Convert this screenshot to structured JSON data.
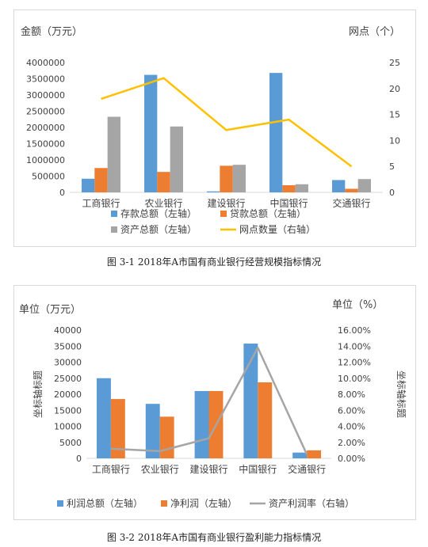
{
  "captions": {
    "fig1": "图 3-1 2018年A市国有商业银行经营规模指标情况",
    "fig2": "图 3-2 2018年A市国有商业银行盈利能力指标情况"
  },
  "chart_data": [
    {
      "type": "bar",
      "categories": [
        "工商银行",
        "农业银行",
        "建设银行",
        "中国银行",
        "交通银行"
      ],
      "series": [
        {
          "name": "存款总额（左轴）",
          "kind": "bar",
          "axis": "left",
          "color": "#5b9bd5",
          "values": [
            420000,
            3620000,
            30000,
            3680000,
            380000
          ]
        },
        {
          "name": "贷款总额（左轴）",
          "kind": "bar",
          "axis": "left",
          "color": "#ed7d31",
          "values": [
            750000,
            630000,
            820000,
            220000,
            110000
          ]
        },
        {
          "name": "资产总额（左轴）",
          "kind": "bar",
          "axis": "left",
          "color": "#a5a5a5",
          "values": [
            2330000,
            2030000,
            850000,
            250000,
            410000
          ]
        },
        {
          "name": "网点数量（右轴）",
          "kind": "line",
          "axis": "right",
          "color": "#ffc000",
          "values": [
            18,
            22,
            12,
            14,
            5
          ]
        }
      ],
      "ylabel": "金额（万元）",
      "y2label": "网点（个）",
      "ylim": [
        0,
        4000000
      ],
      "yticks": [
        "0",
        "500000",
        "1000000",
        "1500000",
        "2000000",
        "2500000",
        "3000000",
        "3500000",
        "4000000"
      ],
      "y2lim": [
        0,
        25
      ],
      "y2ticks": [
        "0",
        "5",
        "10",
        "15",
        "20",
        "25"
      ],
      "legend_position": "bottom",
      "grid": false
    },
    {
      "type": "bar",
      "categories": [
        "工商银行",
        "农业银行",
        "建设银行",
        "中国银行",
        "交通银行"
      ],
      "series": [
        {
          "name": "利润总额（左轴）",
          "kind": "bar",
          "axis": "left",
          "color": "#5b9bd5",
          "values": [
            25000,
            17000,
            21000,
            35800,
            1800
          ]
        },
        {
          "name": "净利润（左轴）",
          "kind": "bar",
          "axis": "left",
          "color": "#ed7d31",
          "values": [
            18500,
            13000,
            21000,
            23700,
            2500
          ]
        },
        {
          "name": "资产利润率（右轴）",
          "kind": "line",
          "axis": "right",
          "color": "#a5a5a5",
          "values": [
            1.2,
            0.9,
            2.5,
            13.8,
            0.5
          ]
        }
      ],
      "ylabel": "单位（万元）",
      "y2label": "单位（%）",
      "y_axis_title": "坐标轴标题",
      "y2_axis_title": "坐标轴标题",
      "ylim": [
        0,
        40000
      ],
      "yticks": [
        "0",
        "5000",
        "10000",
        "15000",
        "20000",
        "25000",
        "30000",
        "35000",
        "40000"
      ],
      "y2lim": [
        0,
        16
      ],
      "y2ticks": [
        "0.00%",
        "2.00%",
        "4.00%",
        "6.00%",
        "8.00%",
        "10.00%",
        "12.00%",
        "14.00%",
        "16.00%"
      ],
      "legend_position": "bottom",
      "grid": false
    }
  ]
}
